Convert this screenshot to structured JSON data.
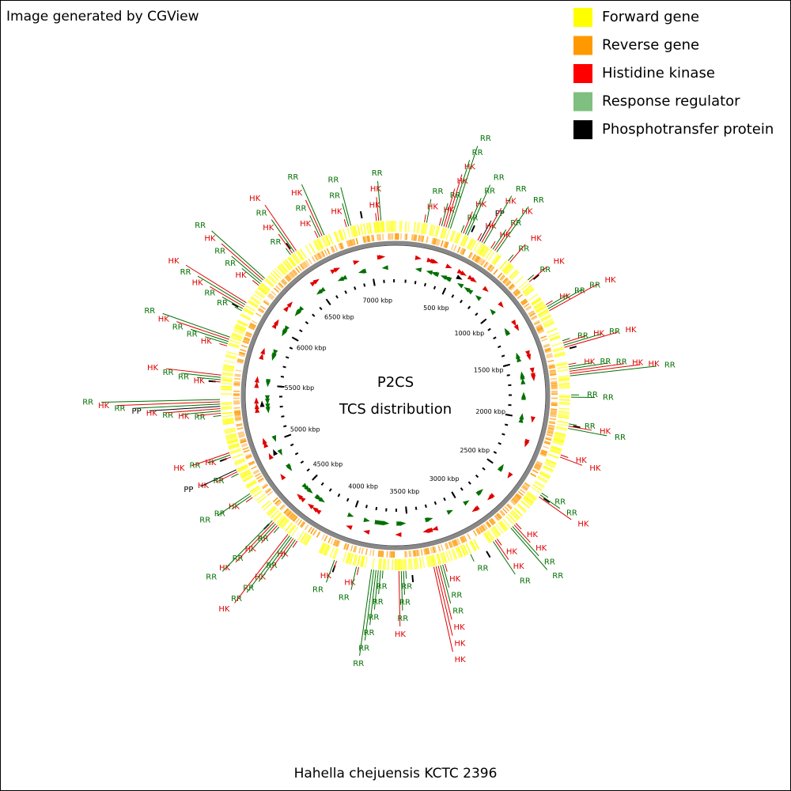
{
  "header": {
    "credit": "Image generated by CGView"
  },
  "legend": {
    "items": [
      {
        "label": "Forward gene",
        "color": "#ffff00"
      },
      {
        "label": "Reverse gene",
        "color": "#ff9900"
      },
      {
        "label": "Histidine kinase",
        "color": "#ff0000"
      },
      {
        "label": "Response regulator",
        "color": "#7fbf7f"
      },
      {
        "label": "Phosphotransfer protein",
        "color": "#000000"
      }
    ]
  },
  "center": {
    "title": "P2CS",
    "subtitle": "TCS distribution"
  },
  "footer": {
    "organism": "Hahella chejuensis KCTC 2396"
  },
  "scale": {
    "range_kbp": [
      0,
      7215
    ],
    "ticks": [
      {
        "value": 500,
        "label": "500 kbp"
      },
      {
        "value": 1000,
        "label": "1000 kbp"
      },
      {
        "value": 1500,
        "label": "1500 kbp"
      },
      {
        "value": 2000,
        "label": "2000 kbp"
      },
      {
        "value": 2500,
        "label": "2500 kbp"
      },
      {
        "value": 3000,
        "label": "3000 kbp"
      },
      {
        "value": 3500,
        "label": "3500 kbp"
      },
      {
        "value": 4000,
        "label": "4000 kbp"
      },
      {
        "value": 4500,
        "label": "4500 kbp"
      },
      {
        "value": 5000,
        "label": "5000 kbp"
      },
      {
        "value": 5500,
        "label": "5500 kbp"
      },
      {
        "value": 6000,
        "label": "6000 kbp"
      },
      {
        "value": 6500,
        "label": "6500 kbp"
      },
      {
        "value": 7000,
        "label": "7000 kbp"
      }
    ]
  },
  "feature_colors": {
    "HK": "#e00000",
    "RR": "#007000",
    "PP": "#000000"
  },
  "features": [
    {
      "label": "HK",
      "kbp": 190
    },
    {
      "label": "RR",
      "kbp": 205
    },
    {
      "label": "HK",
      "kbp": 290
    },
    {
      "label": "RR",
      "kbp": 305
    },
    {
      "label": "HK",
      "kbp": 320
    },
    {
      "label": "HK",
      "kbp": 335
    },
    {
      "label": "RR",
      "kbp": 350
    },
    {
      "label": "RR",
      "kbp": 365
    },
    {
      "label": "RR",
      "kbp": 440
    },
    {
      "label": "HK",
      "kbp": 455
    },
    {
      "label": "RR",
      "kbp": 470
    },
    {
      "label": "RR",
      "kbp": 485
    },
    {
      "label": "HK",
      "kbp": 560
    },
    {
      "label": "PP",
      "kbp": 575
    },
    {
      "label": "HK",
      "kbp": 590
    },
    {
      "label": "RR",
      "kbp": 605
    },
    {
      "label": "HK",
      "kbp": 660
    },
    {
      "label": "RR",
      "kbp": 675
    },
    {
      "label": "HK",
      "kbp": 690
    },
    {
      "label": "RR",
      "kbp": 705
    },
    {
      "label": "RR",
      "kbp": 800
    },
    {
      "label": "HK",
      "kbp": 815
    },
    {
      "label": "RR",
      "kbp": 980
    },
    {
      "label": "HK",
      "kbp": 995
    },
    {
      "label": "HK",
      "kbp": 1180
    },
    {
      "label": "RR",
      "kbp": 1195
    },
    {
      "label": "RR",
      "kbp": 1210
    },
    {
      "label": "HK",
      "kbp": 1225
    },
    {
      "label": "RR",
      "kbp": 1440
    },
    {
      "label": "HK",
      "kbp": 1455
    },
    {
      "label": "RR",
      "kbp": 1470
    },
    {
      "label": "HK",
      "kbp": 1485
    },
    {
      "label": "HK",
      "kbp": 1600
    },
    {
      "label": "RR",
      "kbp": 1615
    },
    {
      "label": "RR",
      "kbp": 1630
    },
    {
      "label": "HK",
      "kbp": 1645
    },
    {
      "label": "HK",
      "kbp": 1660
    },
    {
      "label": "RR",
      "kbp": 1675
    },
    {
      "label": "RR",
      "kbp": 1800
    },
    {
      "label": "RR",
      "kbp": 1815
    },
    {
      "label": "RR",
      "kbp": 1990
    },
    {
      "label": "HK",
      "kbp": 2005
    },
    {
      "label": "RR",
      "kbp": 2020
    },
    {
      "label": "HK",
      "kbp": 2200
    },
    {
      "label": "HK",
      "kbp": 2215
    },
    {
      "label": "RR",
      "kbp": 2480
    },
    {
      "label": "RR",
      "kbp": 2495
    },
    {
      "label": "HK",
      "kbp": 2510
    },
    {
      "label": "HK",
      "kbp": 2740
    },
    {
      "label": "HK",
      "kbp": 2755
    },
    {
      "label": "RR",
      "kbp": 2770
    },
    {
      "label": "RR",
      "kbp": 2785
    },
    {
      "label": "HK",
      "kbp": 2900
    },
    {
      "label": "HK",
      "kbp": 2915
    },
    {
      "label": "RR",
      "kbp": 2930
    },
    {
      "label": "RR",
      "kbp": 3100
    },
    {
      "label": "HK",
      "kbp": 3280
    },
    {
      "label": "RR",
      "kbp": 3295
    },
    {
      "label": "RR",
      "kbp": 3310
    },
    {
      "label": "HK",
      "kbp": 3325
    },
    {
      "label": "HK",
      "kbp": 3340
    },
    {
      "label": "HK",
      "kbp": 3355
    },
    {
      "label": "RR",
      "kbp": 3540
    },
    {
      "label": "RR",
      "kbp": 3555
    },
    {
      "label": "RR",
      "kbp": 3570
    },
    {
      "label": "HK",
      "kbp": 3585
    },
    {
      "label": "RR",
      "kbp": 3690
    },
    {
      "label": "RR",
      "kbp": 3705
    },
    {
      "label": "RR",
      "kbp": 3720
    },
    {
      "label": "RR",
      "kbp": 3735
    },
    {
      "label": "RR",
      "kbp": 3750
    },
    {
      "label": "RR",
      "kbp": 3765
    },
    {
      "label": "HK",
      "kbp": 3850
    },
    {
      "label": "RR",
      "kbp": 3865
    },
    {
      "label": "HK",
      "kbp": 4000
    },
    {
      "label": "RR",
      "kbp": 4015
    },
    {
      "label": "HK",
      "kbp": 4290
    },
    {
      "label": "RR",
      "kbp": 4305
    },
    {
      "label": "HK",
      "kbp": 4320
    },
    {
      "label": "RR",
      "kbp": 4335
    },
    {
      "label": "RR",
      "kbp": 4350
    },
    {
      "label": "HK",
      "kbp": 4365
    },
    {
      "label": "RR",
      "kbp": 4440
    },
    {
      "label": "HK",
      "kbp": 4455
    },
    {
      "label": "RR",
      "kbp": 4470
    },
    {
      "label": "HK",
      "kbp": 4485
    },
    {
      "label": "RR",
      "kbp": 4500
    },
    {
      "label": "HK",
      "kbp": 4700
    },
    {
      "label": "RR",
      "kbp": 4715
    },
    {
      "label": "RR",
      "kbp": 4730
    },
    {
      "label": "RR",
      "kbp": 4880
    },
    {
      "label": "HK",
      "kbp": 4895
    },
    {
      "label": "PP",
      "kbp": 4910
    },
    {
      "label": "HK",
      "kbp": 5000
    },
    {
      "label": "RR",
      "kbp": 5015
    },
    {
      "label": "HK",
      "kbp": 5030
    },
    {
      "label": "RR",
      "kbp": 5280
    },
    {
      "label": "HK",
      "kbp": 5295
    },
    {
      "label": "RR",
      "kbp": 5310
    },
    {
      "label": "HK",
      "kbp": 5325
    },
    {
      "label": "PP",
      "kbp": 5340
    },
    {
      "label": "RR",
      "kbp": 5355
    },
    {
      "label": "HK",
      "kbp": 5370
    },
    {
      "label": "RR",
      "kbp": 5385
    },
    {
      "label": "HK",
      "kbp": 5500
    },
    {
      "label": "RR",
      "kbp": 5515
    },
    {
      "label": "RR",
      "kbp": 5530
    },
    {
      "label": "HK",
      "kbp": 5545
    },
    {
      "label": "HK",
      "kbp": 5740
    },
    {
      "label": "RR",
      "kbp": 5755
    },
    {
      "label": "RR",
      "kbp": 5770
    },
    {
      "label": "HK",
      "kbp": 5785
    },
    {
      "label": "RR",
      "kbp": 5800
    },
    {
      "label": "RR",
      "kbp": 5990
    },
    {
      "label": "RR",
      "kbp": 6005
    },
    {
      "label": "HK",
      "kbp": 6020
    },
    {
      "label": "RR",
      "kbp": 6035
    },
    {
      "label": "HK",
      "kbp": 6050
    },
    {
      "label": "HK",
      "kbp": 6190
    },
    {
      "label": "RR",
      "kbp": 6205
    },
    {
      "label": "RR",
      "kbp": 6220
    },
    {
      "label": "HK",
      "kbp": 6235
    },
    {
      "label": "RR",
      "kbp": 6250
    },
    {
      "label": "RR",
      "kbp": 6480
    },
    {
      "label": "HK",
      "kbp": 6495
    },
    {
      "label": "RR",
      "kbp": 6510
    },
    {
      "label": "HK",
      "kbp": 6525
    },
    {
      "label": "HK",
      "kbp": 6690
    },
    {
      "label": "RR",
      "kbp": 6705
    },
    {
      "label": "HK",
      "kbp": 6720
    },
    {
      "label": "RR",
      "kbp": 6735
    },
    {
      "label": "HK",
      "kbp": 6890
    },
    {
      "label": "RR",
      "kbp": 6905
    },
    {
      "label": "RR",
      "kbp": 6920
    },
    {
      "label": "HK",
      "kbp": 7090
    },
    {
      "label": "HK",
      "kbp": 7105
    },
    {
      "label": "RR",
      "kbp": 7120
    }
  ]
}
